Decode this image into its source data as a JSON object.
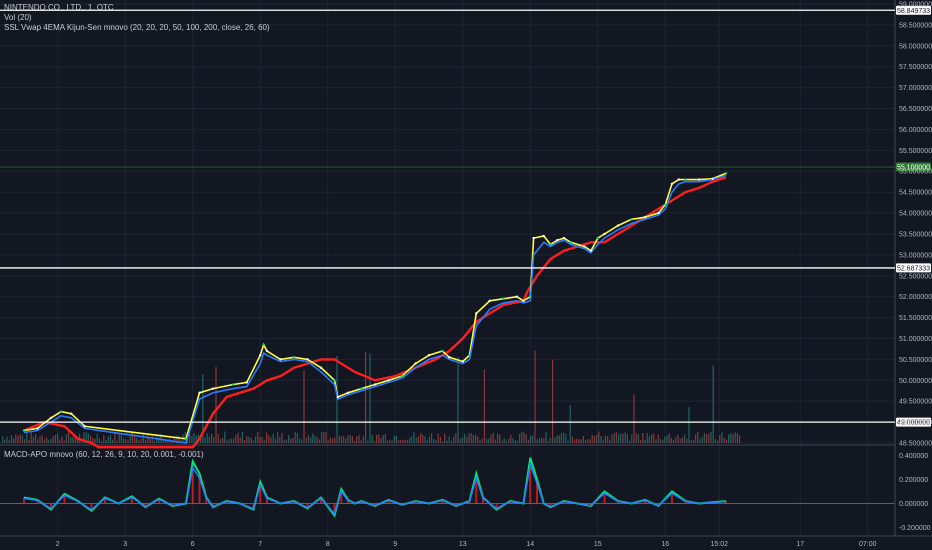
{
  "legend": {
    "symbol_line": "NINTENDO CO., LTD., 1, OTC",
    "volume_line": "Vol (20)",
    "indicator_line": "SSL Vwap 4EMA Kijun-Sen mnovo (20, 20, 20, 50, 100, 200, close, 26, 60)",
    "macd_line": "MACD-APO mnovo (60, 12, 26, 9, 10, 20, 0.001, -0.001)"
  },
  "price_axis": {
    "ticks": [
      "59.000000",
      "58.500000",
      "58.000000",
      "57.500000",
      "57.000000",
      "56.500000",
      "56.000000",
      "55.500000",
      "55.000000",
      "54.500000",
      "54.000000",
      "53.500000",
      "53.000000",
      "52.500000",
      "52.000000",
      "51.500000",
      "51.000000",
      "50.500000",
      "50.000000",
      "49.500000",
      "49.000000",
      "48.500000"
    ],
    "tick_values": [
      59.0,
      58.5,
      58.0,
      57.5,
      57.0,
      56.5,
      56.0,
      55.5,
      55.0,
      54.5,
      54.0,
      53.5,
      53.0,
      52.5,
      52.0,
      51.5,
      51.0,
      50.5,
      50.0,
      49.5,
      49.0,
      48.5
    ],
    "range": [
      48.5,
      59.0
    ]
  },
  "macd_axis": {
    "ticks": [
      "0.400000",
      "0.200000",
      "0.000000",
      "-0.200000"
    ],
    "tick_values": [
      0.4,
      0.2,
      0.0,
      -0.2
    ],
    "range": [
      -0.27,
      0.47
    ]
  },
  "time_axis": {
    "labels": [
      "2",
      "3",
      "6",
      "7",
      "8",
      "9",
      "13",
      "14",
      "15",
      "16",
      "15:02",
      "17",
      "07:00"
    ],
    "positions": [
      0.5,
      1.5,
      2.5,
      3.5,
      4.5,
      5.5,
      6.5,
      7.5,
      8.5,
      9.5,
      10.3,
      11.5,
      12.5
    ]
  },
  "levels": [
    {
      "label": "58.849733",
      "value": 58.849733,
      "color": "#ffffff",
      "text_color": "#131722"
    },
    {
      "label": "52.687333",
      "value": 52.687333,
      "color": "#ffffff",
      "text_color": "#131722"
    },
    {
      "label": "49.000000",
      "value": 49.0,
      "color": "#ffffff",
      "text_color": "#131722"
    },
    {
      "label": "55.100000",
      "value": 55.1,
      "color": "#2e7d32",
      "text_color": "#ffffff"
    }
  ],
  "colors": {
    "background": "#131722",
    "grid": "#1f2433",
    "kijun": "#ff1e1e",
    "ema_fast": "#ffff3b",
    "ema_mid": "#2a7bff",
    "ssl_up": "#00e676",
    "macd_line": "#2a7bff",
    "macd_signal": "#00e676",
    "macd_hist": "#ff1e1e"
  },
  "chart_data": {
    "type": "line",
    "x_unit": "session index (time axis labels at half steps)",
    "series": [
      {
        "values_x": [
          0.0,
          0.3,
          0.6,
          0.8,
          1.0,
          1.1,
          2.5,
          2.6,
          2.8,
          3.0,
          3.2,
          3.4,
          3.5,
          3.6,
          3.8,
          4.0,
          4.2,
          4.4,
          4.6,
          4.9,
          5.2,
          5.5,
          5.8,
          6.1,
          6.3,
          6.5,
          6.7,
          6.9,
          7.1,
          7.4,
          7.45,
          7.6,
          7.8,
          8.0,
          8.2,
          8.4,
          8.6,
          8.8,
          9.0,
          9.2,
          9.4,
          9.6,
          9.8,
          10.0,
          10.2,
          10.4
        ],
        "values_y": [
          48.8,
          49.0,
          48.9,
          48.6,
          48.5,
          48.4,
          48.4,
          48.6,
          49.2,
          49.6,
          49.7,
          49.8,
          49.9,
          50.0,
          50.1,
          50.3,
          50.4,
          50.5,
          50.5,
          50.2,
          50.0,
          50.1,
          50.3,
          50.5,
          50.7,
          51.0,
          51.4,
          51.6,
          51.8,
          51.9,
          52.1,
          52.5,
          52.9,
          53.1,
          53.2,
          53.3,
          53.3,
          53.5,
          53.7,
          53.9,
          54.1,
          54.3,
          54.5,
          54.6,
          54.75,
          54.85
        ]
      },
      {
        "values_x": [
          0.0,
          0.2,
          0.4,
          0.55,
          0.7,
          0.9,
          2.4,
          2.6,
          2.8,
          3.1,
          3.3,
          3.5,
          3.55,
          3.6,
          3.8,
          4.0,
          4.2,
          4.4,
          4.6,
          4.65,
          4.8,
          5.0,
          5.2,
          5.4,
          5.6,
          5.8,
          6.0,
          6.2,
          6.3,
          6.5,
          6.6,
          6.7,
          6.9,
          7.1,
          7.3,
          7.4,
          7.5,
          7.55,
          7.7,
          7.8,
          7.9,
          8.0,
          8.1,
          8.3,
          8.4,
          8.5,
          8.6,
          8.8,
          9.0,
          9.2,
          9.4,
          9.5,
          9.6,
          9.7,
          9.8,
          10.0,
          10.2,
          10.4
        ],
        "values_y": [
          48.8,
          48.85,
          49.1,
          49.25,
          49.2,
          48.9,
          48.6,
          49.7,
          49.8,
          49.9,
          49.95,
          50.6,
          50.85,
          50.7,
          50.5,
          50.55,
          50.5,
          50.3,
          50.0,
          49.6,
          49.7,
          49.8,
          49.9,
          50.0,
          50.1,
          50.4,
          50.6,
          50.7,
          50.55,
          50.45,
          50.6,
          51.6,
          51.9,
          51.95,
          52.0,
          51.9,
          52.0,
          53.4,
          53.45,
          53.25,
          53.35,
          53.4,
          53.3,
          53.2,
          53.1,
          53.4,
          53.5,
          53.7,
          53.85,
          53.9,
          54.0,
          54.2,
          54.7,
          54.8,
          54.8,
          54.8,
          54.82,
          54.95
        ]
      },
      {
        "values_x": [
          0.0,
          0.2,
          0.4,
          0.55,
          0.7,
          0.9,
          2.4,
          2.6,
          2.8,
          3.1,
          3.3,
          3.5,
          3.55,
          3.6,
          3.8,
          4.0,
          4.2,
          4.4,
          4.6,
          4.65,
          4.8,
          5.0,
          5.2,
          5.4,
          5.6,
          5.8,
          6.0,
          6.2,
          6.3,
          6.5,
          6.6,
          6.7,
          6.9,
          7.1,
          7.3,
          7.4,
          7.5,
          7.55,
          7.7,
          7.8,
          7.9,
          8.0,
          8.1,
          8.3,
          8.4,
          8.5,
          8.6,
          8.8,
          9.0,
          9.2,
          9.4,
          9.5,
          9.6,
          9.7,
          9.8,
          10.0,
          10.2,
          10.4
        ],
        "values_y": [
          48.75,
          48.8,
          49.0,
          49.15,
          49.1,
          48.85,
          48.5,
          49.55,
          49.7,
          49.8,
          49.85,
          50.4,
          50.65,
          50.6,
          50.45,
          50.5,
          50.45,
          50.2,
          49.9,
          49.55,
          49.65,
          49.75,
          49.85,
          49.95,
          50.05,
          50.3,
          50.5,
          50.6,
          50.5,
          50.4,
          50.5,
          51.3,
          51.7,
          51.85,
          51.9,
          51.85,
          51.9,
          53.0,
          53.3,
          53.2,
          53.3,
          53.35,
          53.25,
          53.15,
          53.05,
          53.25,
          53.4,
          53.6,
          53.75,
          53.85,
          53.95,
          54.1,
          54.5,
          54.7,
          54.75,
          54.75,
          54.8,
          54.9
        ]
      }
    ],
    "macd": {
      "values_x": [
        0.0,
        0.2,
        0.4,
        0.6,
        0.8,
        1.0,
        1.2,
        1.4,
        1.6,
        1.8,
        2.0,
        2.2,
        2.4,
        2.5,
        2.6,
        2.7,
        2.8,
        3.0,
        3.2,
        3.4,
        3.5,
        3.6,
        3.8,
        4.0,
        4.2,
        4.4,
        4.6,
        4.7,
        4.8,
        4.9,
        5.0,
        5.2,
        5.4,
        5.6,
        5.8,
        6.0,
        6.2,
        6.4,
        6.6,
        6.7,
        6.8,
        7.0,
        7.2,
        7.4,
        7.5,
        7.6,
        7.7,
        7.8,
        8.0,
        8.2,
        8.4,
        8.6,
        8.8,
        9.0,
        9.2,
        9.4,
        9.6,
        9.8,
        10.0,
        10.2,
        10.4
      ],
      "values_y": [
        0.05,
        0.03,
        -0.05,
        0.08,
        0.02,
        -0.06,
        0.05,
        0.0,
        0.06,
        -0.03,
        0.04,
        -0.02,
        0.0,
        0.35,
        0.25,
        0.05,
        -0.03,
        0.02,
        0.0,
        -0.05,
        0.18,
        0.05,
        0.0,
        0.02,
        -0.04,
        0.05,
        -0.1,
        0.12,
        0.03,
        0.0,
        0.02,
        -0.02,
        0.03,
        -0.01,
        0.02,
        0.0,
        0.03,
        -0.02,
        0.02,
        0.25,
        0.05,
        -0.05,
        0.02,
        0.0,
        0.38,
        0.2,
        0.0,
        -0.03,
        0.02,
        0.0,
        -0.02,
        0.1,
        0.02,
        0.0,
        0.03,
        -0.02,
        0.1,
        0.02,
        0.0,
        0.01,
        0.02
      ]
    }
  }
}
